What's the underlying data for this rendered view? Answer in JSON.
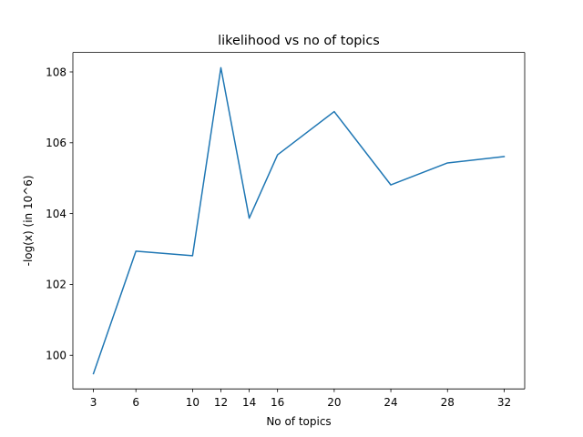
{
  "chart_data": {
    "type": "line",
    "title": "likelihood vs no of topics",
    "xlabel": "No of topics",
    "ylabel": "-log(x) (in 10^6)",
    "x": [
      3,
      6,
      10,
      12,
      14,
      16,
      20,
      24,
      28,
      32
    ],
    "series": [
      {
        "values": [
          99.48,
          102.94,
          102.81,
          108.12,
          103.87,
          105.66,
          106.88,
          104.81,
          105.43,
          105.61
        ],
        "color": "#1f77b4"
      }
    ],
    "xticks": [
      3,
      6,
      10,
      12,
      14,
      16,
      20,
      24,
      28,
      32
    ],
    "yticks": [
      100,
      102,
      104,
      106,
      108
    ],
    "xlim": [
      1.55,
      33.45
    ],
    "ylim": [
      99.05,
      108.55
    ],
    "grid": false,
    "legend": "none"
  }
}
